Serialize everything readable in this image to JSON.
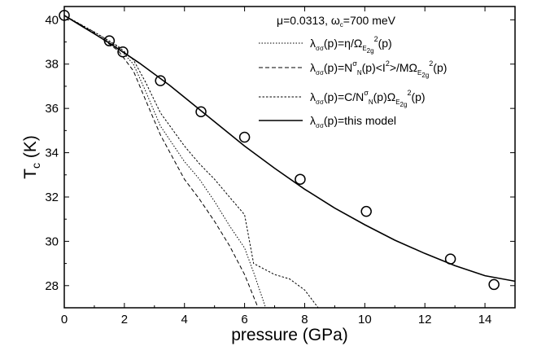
{
  "chart_data": {
    "type": "scatter",
    "xlabel": "pressure  (GPa)",
    "ylabel_main": "T",
    "ylabel_sub": "c",
    "ylabel_unit": "  (K)",
    "xlim": [
      0,
      15
    ],
    "ylim": [
      27,
      40.6
    ],
    "x_ticks": [
      0,
      2,
      4,
      6,
      8,
      10,
      12,
      14
    ],
    "y_ticks": [
      28,
      30,
      32,
      34,
      36,
      38,
      40
    ],
    "grid": false,
    "legend_placement": "top-right",
    "legend_header": {
      "mu": "μ=0.0313, ω",
      "omega_sub": "c",
      "rest": "=700 meV"
    },
    "experimental": {
      "marker": "open-circle",
      "x": [
        0.0,
        1.5,
        1.95,
        3.2,
        4.55,
        6.0,
        7.85,
        10.05,
        12.85,
        14.3
      ],
      "y": [
        40.2,
        39.05,
        38.55,
        37.25,
        35.85,
        34.7,
        32.8,
        31.35,
        29.2,
        28.05
      ]
    },
    "series": [
      {
        "style": "dotted",
        "legend": [
          {
            "t": "λ"
          },
          {
            "t": "σσ",
            "sub": true
          },
          {
            "t": "(p)=η/Ω"
          },
          {
            "t": "E",
            "sub": true
          },
          {
            "t": "2g",
            "sub2": true
          },
          {
            "t": "2",
            "sup": true
          },
          {
            "t": "(p)"
          }
        ],
        "x": [
          0,
          1.0,
          1.8,
          2.3,
          2.7,
          3.2,
          4.0,
          4.5,
          5.0,
          5.5,
          6.0,
          6.3,
          6.7
        ],
        "y": [
          40.2,
          39.45,
          38.75,
          38.0,
          36.8,
          35.2,
          33.6,
          32.8,
          31.8,
          30.7,
          29.7,
          28.6,
          27.0
        ]
      },
      {
        "style": "dashed",
        "legend": [
          {
            "t": "λ"
          },
          {
            "t": "σσ",
            "sub": true
          },
          {
            "t": "(p)=N"
          },
          {
            "t": "σ",
            "sup": true
          },
          {
            "t": "N",
            "sub": true
          },
          {
            "t": "(p)<I"
          },
          {
            "t": "2",
            "sup": true
          },
          {
            "t": ">/MΩ"
          },
          {
            "t": "E",
            "sub": true
          },
          {
            "t": "2g",
            "sub2": true
          },
          {
            "t": "2",
            "sup": true
          },
          {
            "t": "(p)"
          }
        ],
        "x": [
          0,
          1.0,
          1.8,
          2.3,
          2.7,
          3.2,
          4.0,
          4.5,
          5.0,
          5.5,
          6.0,
          6.45
        ],
        "y": [
          40.2,
          39.4,
          38.6,
          37.7,
          36.4,
          34.8,
          32.8,
          31.9,
          30.9,
          29.8,
          28.5,
          27.0
        ]
      },
      {
        "style": "short-dashed",
        "legend": [
          {
            "t": "λ"
          },
          {
            "t": "σσ",
            "sub": true
          },
          {
            "t": "(p)=C/N"
          },
          {
            "t": "σ",
            "sup": true
          },
          {
            "t": "N",
            "sub": true
          },
          {
            "t": "(p)Ω"
          },
          {
            "t": "E",
            "sub": true
          },
          {
            "t": "2g",
            "sub2": true
          },
          {
            "t": "2",
            "sup": true
          },
          {
            "t": "(p)"
          }
        ],
        "x": [
          0,
          1.0,
          1.8,
          2.3,
          2.7,
          3.2,
          4.0,
          4.5,
          5.0,
          5.5,
          6.0,
          6.3,
          7.0,
          7.5,
          8.0,
          8.45
        ],
        "y": [
          40.2,
          39.45,
          38.8,
          38.2,
          37.2,
          35.8,
          34.3,
          33.5,
          32.8,
          32.0,
          31.2,
          29.0,
          28.5,
          28.3,
          27.8,
          27.0
        ]
      },
      {
        "style": "solid",
        "legend": [
          {
            "t": "λ"
          },
          {
            "t": "σσ",
            "sub": true
          },
          {
            "t": "(p)=this model"
          }
        ],
        "x": [
          0,
          0.5,
          1.0,
          1.5,
          2.0,
          2.5,
          3.0,
          3.5,
          4.0,
          4.5,
          5.0,
          5.5,
          6.0,
          7.0,
          8.0,
          9.0,
          10.0,
          11.0,
          12.0,
          13.0,
          14.0,
          15.0
        ],
        "y": [
          40.2,
          39.78,
          39.37,
          38.95,
          38.5,
          38.05,
          37.55,
          37.05,
          36.5,
          35.95,
          35.4,
          34.85,
          34.3,
          33.3,
          32.35,
          31.5,
          30.75,
          30.05,
          29.45,
          28.9,
          28.45,
          28.2
        ]
      }
    ]
  }
}
